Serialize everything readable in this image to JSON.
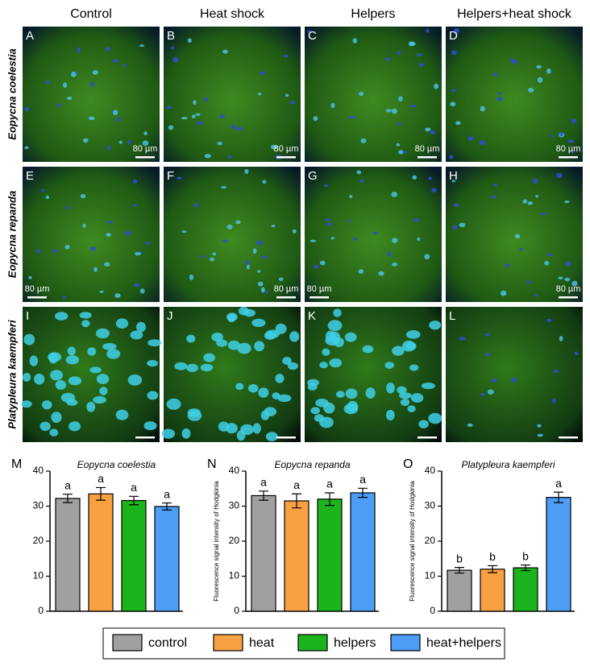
{
  "figure": {
    "columns": [
      "Control",
      "Heat shock",
      "Helpers",
      "Helpers+heat shock"
    ],
    "rows": [
      {
        "label": "Eopycna coelestia",
        "panels": [
          "A",
          "B",
          "C",
          "D"
        ],
        "scale_labels": [
          "80 µm",
          "80 µm",
          "80 µm",
          "80 µm"
        ]
      },
      {
        "label": "Eopycna repanda",
        "panels": [
          "E",
          "F",
          "G",
          "H"
        ],
        "scale_labels": [
          "80 µm",
          "80 µm",
          "80 µm",
          "80 µm"
        ]
      },
      {
        "label": "Platypleura kaempferi",
        "panels": [
          "I",
          "J",
          "K",
          "L"
        ]
      }
    ]
  },
  "legend": {
    "items": [
      {
        "name": "control",
        "color": "#a0a0a0"
      },
      {
        "name": "heat",
        "color": "#f8a142"
      },
      {
        "name": "helpers",
        "color": "#1cb41c"
      },
      {
        "name": "heat+helpers",
        "color": "#4d9cf5"
      }
    ]
  },
  "chart_data": [
    {
      "type": "bar",
      "panel": "M",
      "title": "Eopycna coelestia",
      "values": [
        32.2,
        33.5,
        31.6,
        29.9
      ],
      "errors": [
        1.2,
        1.8,
        1.2,
        1.0
      ],
      "significance": [
        "a",
        "a",
        "a",
        "a"
      ],
      "ylim": [
        0,
        40
      ],
      "yticks": [
        0,
        10,
        20,
        30,
        40
      ]
    },
    {
      "type": "bar",
      "panel": "N",
      "title": "Eopycna repanda",
      "ylabel": "Fluorescence signal intensity of Hodgkinia",
      "values": [
        33.0,
        31.5,
        32.0,
        33.8
      ],
      "errors": [
        1.3,
        2.0,
        1.8,
        1.3
      ],
      "significance": [
        "a",
        "a",
        "a",
        "a"
      ],
      "ylim": [
        0,
        40
      ],
      "yticks": [
        0,
        10,
        20,
        30,
        40
      ]
    },
    {
      "type": "bar",
      "panel": "O",
      "title": "Platypleura kaempferi",
      "ylabel": "Fluorescence signal intensity of Hodgkinia",
      "values": [
        11.7,
        12.0,
        12.4,
        32.5
      ],
      "errors": [
        0.8,
        1.0,
        0.8,
        1.5
      ],
      "significance": [
        "b",
        "b",
        "b",
        "a"
      ],
      "ylim": [
        0,
        40
      ],
      "yticks": [
        0,
        10,
        20,
        30,
        40
      ]
    }
  ]
}
